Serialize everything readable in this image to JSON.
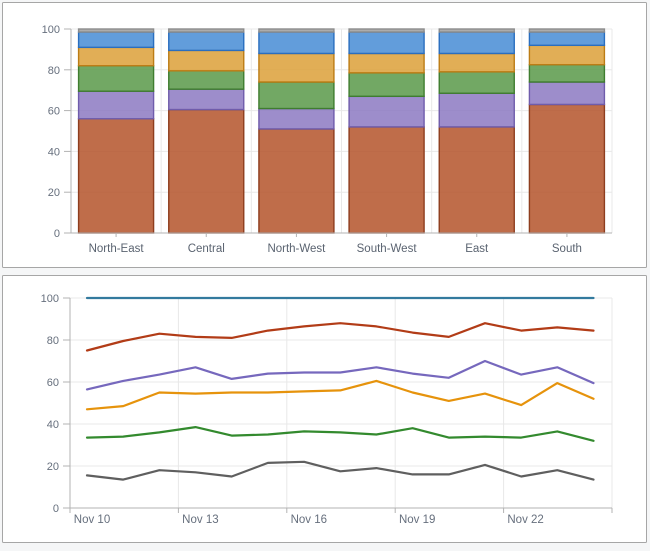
{
  "page": {
    "background": "#f5f6f7",
    "panel_background": "#ffffff",
    "panel_border": "#a6a6a6",
    "gridline_color": "#e8e8e8",
    "axis_color": "#b3b3b3",
    "tick_label_color": "#666f7d",
    "category_label_color": "#5a6370"
  },
  "chart_data": [
    {
      "type": "bar",
      "stacked": true,
      "normalized_to_100": true,
      "categories": [
        "North-East",
        "Central",
        "North-West",
        "South-West",
        "East",
        "South"
      ],
      "series": [
        {
          "name": "sienna-segment",
          "color": "#b5572f",
          "border": "#8e3d1e",
          "values": [
            56,
            60.5,
            51,
            52,
            52,
            63
          ]
        },
        {
          "name": "purple-segment",
          "color": "#8e7cc3",
          "border": "#6f5cab",
          "values": [
            13.5,
            10,
            10,
            15,
            16.5,
            11
          ]
        },
        {
          "name": "green-segment",
          "color": "#5d9b4d",
          "border": "#3f7d2f",
          "values": [
            12.5,
            9,
            13,
            11.5,
            10.5,
            8.5
          ]
        },
        {
          "name": "orange-segment",
          "color": "#dda23d",
          "border": "#bc7c15",
          "values": [
            9,
            10,
            14,
            9.5,
            9,
            9.5
          ]
        },
        {
          "name": "blue-segment",
          "color": "#4b8ed6",
          "border": "#2a6ebf",
          "values": [
            7.5,
            9,
            10.5,
            10.5,
            10.5,
            6.5
          ]
        },
        {
          "name": "gray-segment",
          "color": "#a0a0a0",
          "border": "#8c8c8c",
          "values": [
            1.5,
            1.5,
            1.5,
            1.5,
            1.5,
            1.5
          ]
        }
      ],
      "ylim": [
        0,
        100
      ],
      "yticks": [
        0,
        20,
        40,
        60,
        80,
        100
      ],
      "grid": true,
      "legend": "none",
      "title": ""
    },
    {
      "type": "line",
      "x_points": [
        "Nov 10",
        "Nov 11",
        "Nov 12",
        "Nov 13",
        "Nov 14",
        "Nov 15",
        "Nov 16",
        "Nov 17",
        "Nov 18",
        "Nov 19",
        "Nov 20",
        "Nov 21",
        "Nov 22",
        "Nov 23",
        "Nov 24"
      ],
      "x_tick_labels": [
        "Nov 10",
        "Nov 13",
        "Nov 16",
        "Nov 19",
        "Nov 22"
      ],
      "series": [
        {
          "name": "blue-line",
          "color": "#337a9e",
          "values": [
            100,
            100,
            100,
            100,
            100,
            100,
            100,
            100,
            100,
            100,
            100,
            100,
            100,
            100,
            100
          ]
        },
        {
          "name": "red-line",
          "color": "#b23c17",
          "values": [
            75,
            79.5,
            83,
            81.5,
            81,
            84.5,
            86.5,
            88,
            86.5,
            83.5,
            81.5,
            88,
            84.5,
            86,
            84.5
          ]
        },
        {
          "name": "purple-line",
          "color": "#7668bd",
          "values": [
            56.5,
            60.5,
            63.5,
            67,
            61.5,
            64,
            64.5,
            64.5,
            67,
            64,
            62,
            70,
            63.5,
            67,
            59.5
          ]
        },
        {
          "name": "orange-line",
          "color": "#e6930c",
          "values": [
            47,
            48.5,
            55,
            54.5,
            55,
            55,
            55.5,
            56,
            60.5,
            55,
            51,
            54.5,
            49,
            59.5,
            52
          ]
        },
        {
          "name": "green-line",
          "color": "#338a2e",
          "values": [
            33.5,
            34,
            36,
            38.5,
            34.5,
            35,
            36.5,
            36,
            35,
            38,
            33.5,
            34,
            33.5,
            36.5,
            32
          ]
        },
        {
          "name": "gray-line",
          "color": "#5f5f5f",
          "values": [
            15.5,
            13.5,
            18,
            17,
            15,
            21.5,
            22,
            17.5,
            19,
            16,
            16,
            20.5,
            15,
            18,
            13.5
          ]
        }
      ],
      "ylim": [
        0,
        100
      ],
      "yticks": [
        0,
        20,
        40,
        60,
        80,
        100
      ],
      "grid": true,
      "legend": "none",
      "title": ""
    }
  ]
}
